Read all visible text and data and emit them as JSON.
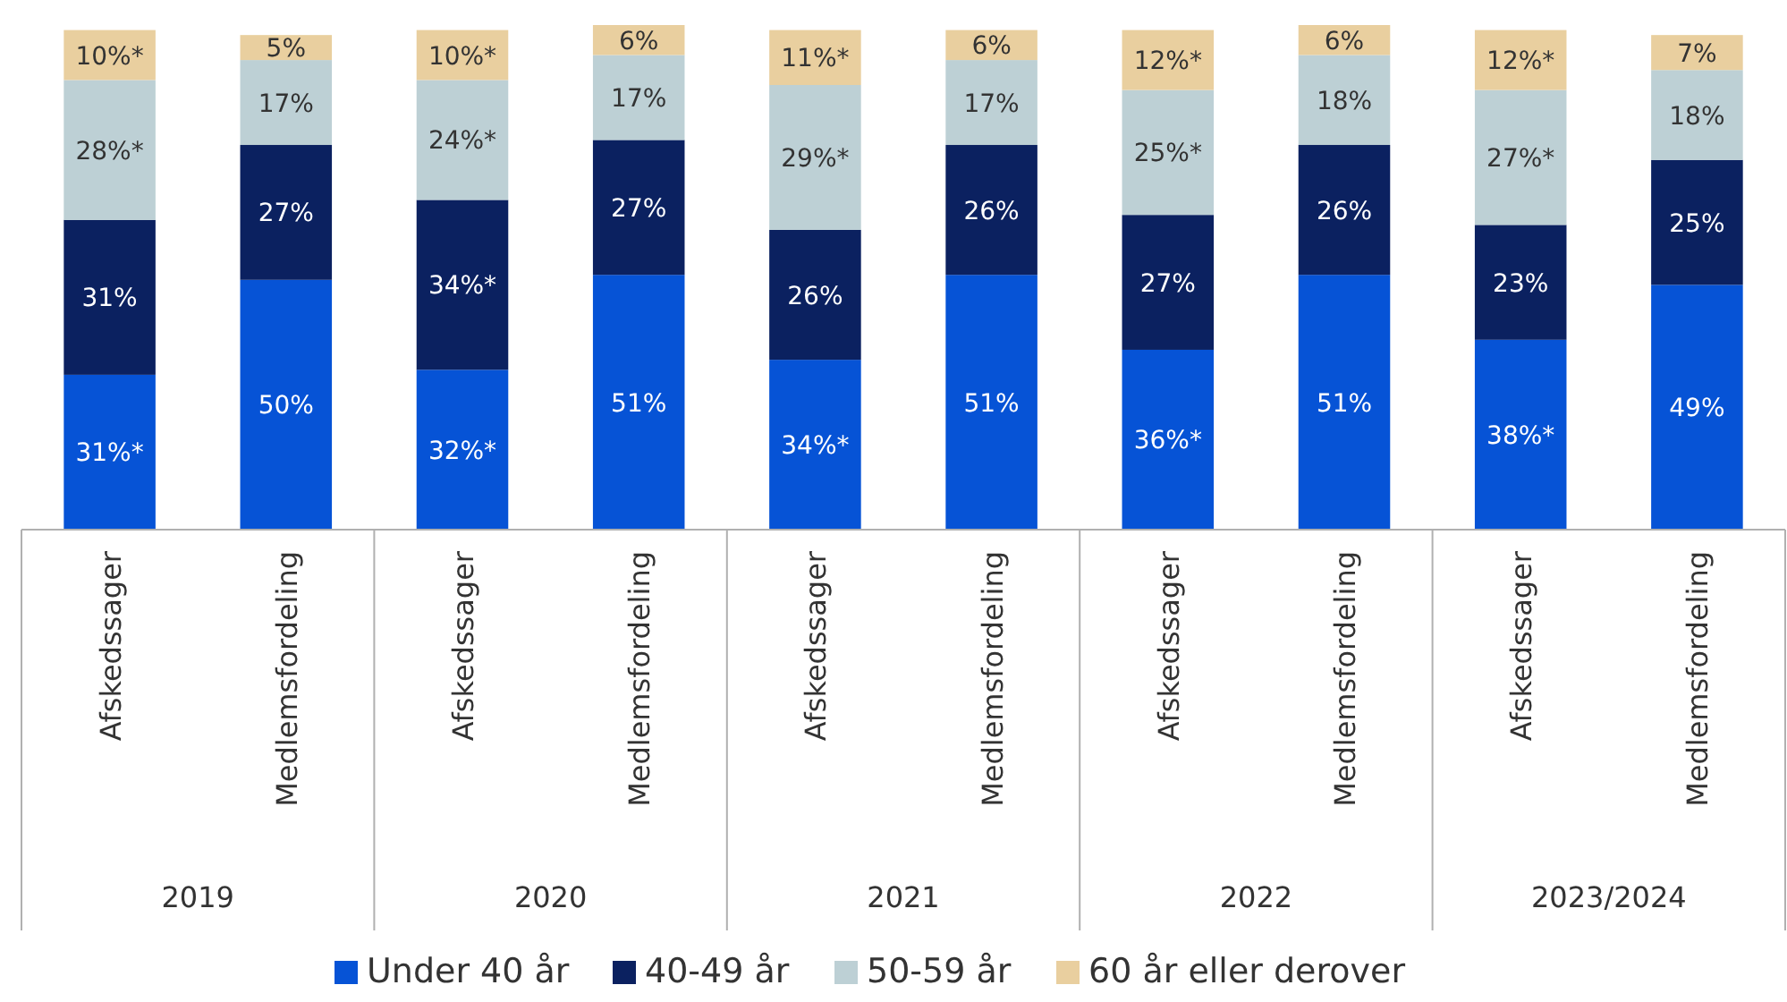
{
  "chart_data": {
    "type": "bar",
    "stacked": true,
    "legend": "bottom",
    "categories": [
      "Afskedssager",
      "Medlemsfordeling",
      "Afskedssager",
      "Medlemsfordeling",
      "Afskedssager",
      "Medlemsfordeling",
      "Afskedssager",
      "Medlemsfordeling",
      "Afskedssager",
      "Medlemsfordeling"
    ],
    "annotations": [
      "2019",
      "2020",
      "2021",
      "2022",
      "2023/2024"
    ],
    "series": [
      {
        "name": "Under 40 år",
        "color": "#0653d6",
        "values": [
          31,
          50,
          32,
          51,
          34,
          51,
          36,
          51,
          38,
          49
        ],
        "value_labels": [
          "31%*",
          "50%",
          "32%*",
          "51%",
          "34%*",
          "51%",
          "36%*",
          "51%",
          "38%*",
          "49%"
        ]
      },
      {
        "name": "40-49 år",
        "color": "#0b2160",
        "values": [
          31,
          27,
          34,
          27,
          26,
          26,
          27,
          26,
          23,
          25
        ],
        "value_labels": [
          "31%",
          "27%",
          "34%*",
          "27%",
          "26%",
          "26%",
          "27%",
          "26%",
          "23%",
          "25%"
        ]
      },
      {
        "name": "50-59 år",
        "color": "#bdd0d5",
        "values": [
          28,
          17,
          24,
          17,
          29,
          17,
          25,
          18,
          27,
          18
        ],
        "value_labels": [
          "28%*",
          "17%",
          "24%*",
          "17%",
          "29%*",
          "17%",
          "25%*",
          "18%",
          "27%*",
          "18%"
        ]
      },
      {
        "name": "60 år eller derover",
        "color": "#e9cf9f",
        "values": [
          10,
          5,
          10,
          6,
          11,
          6,
          12,
          6,
          12,
          7
        ],
        "value_labels": [
          "10%*",
          "5%",
          "10%*",
          "6%",
          "11%*",
          "6%",
          "12%*",
          "6%",
          "12%*",
          "7%"
        ]
      }
    ]
  }
}
